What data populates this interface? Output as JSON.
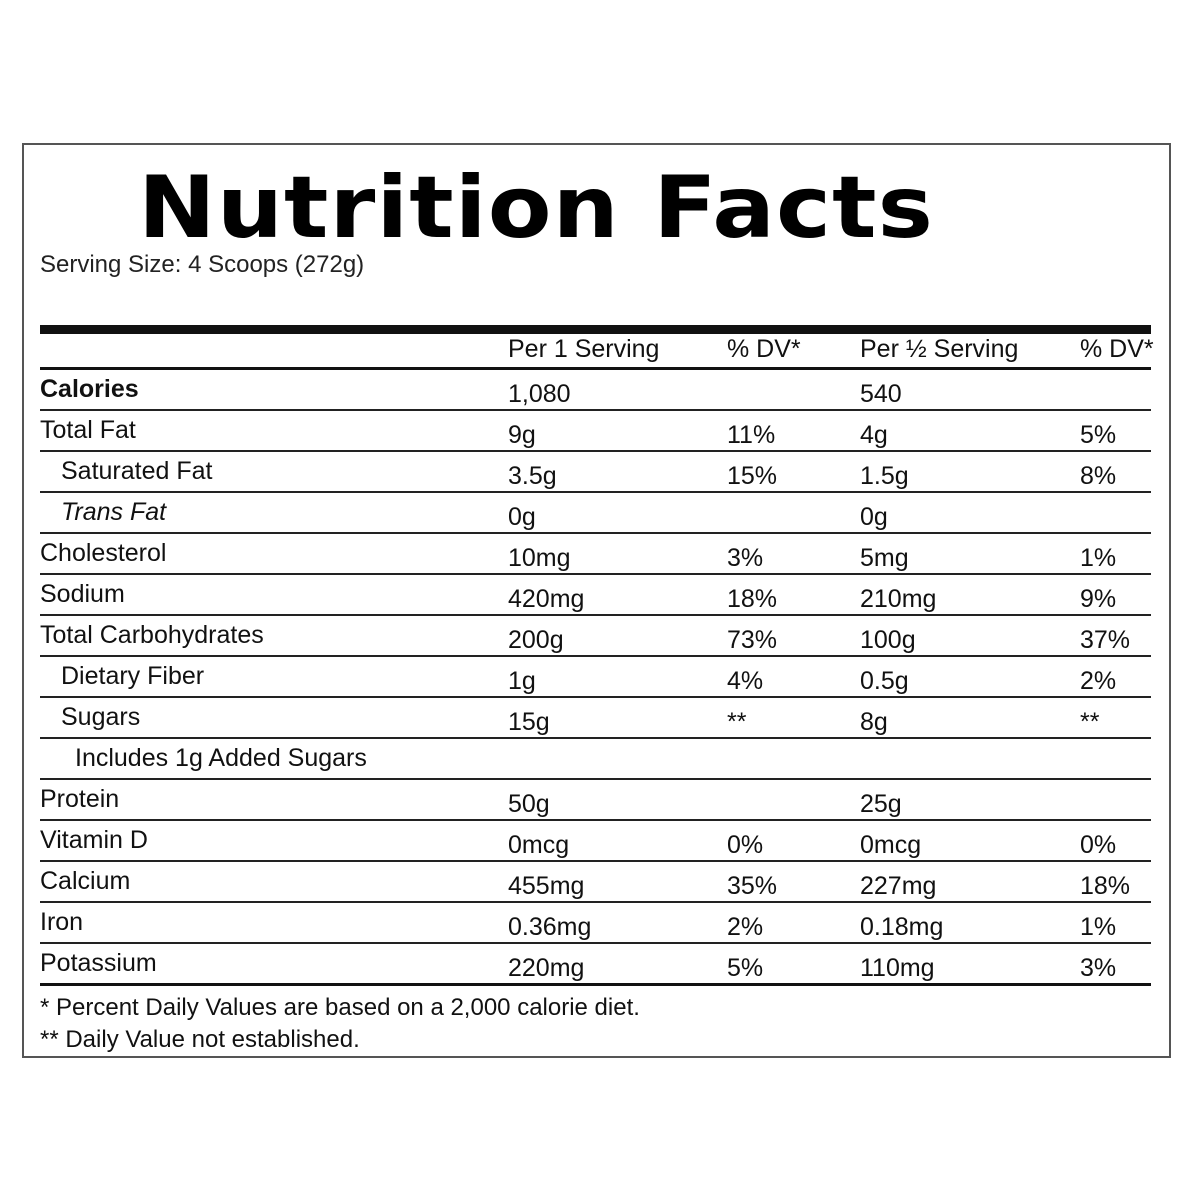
{
  "title": "Nutrition Facts",
  "serving_size": "Serving Size: 4 Scoops (272g)",
  "columns": {
    "per1": "Per 1 Serving",
    "dv1": "% DV*",
    "perhalf": "Per ½ Serving",
    "dv2": "% DV*"
  },
  "rows": [
    {
      "name": "Calories",
      "per1": "1,080",
      "dv1": "",
      "perhalf": "540",
      "dv2": ""
    },
    {
      "name": "Total Fat",
      "per1": "9g",
      "dv1": "11%",
      "perhalf": "4g",
      "dv2": "5%"
    },
    {
      "name": "Saturated Fat",
      "per1": "3.5g",
      "dv1": "15%",
      "perhalf": "1.5g",
      "dv2": "8%"
    },
    {
      "name": "Trans Fat",
      "per1": "0g",
      "dv1": "",
      "perhalf": "0g",
      "dv2": ""
    },
    {
      "name": "Cholesterol",
      "per1": "10mg",
      "dv1": "3%",
      "perhalf": "5mg",
      "dv2": "1%"
    },
    {
      "name": "Sodium",
      "per1": "420mg",
      "dv1": "18%",
      "perhalf": "210mg",
      "dv2": "9%"
    },
    {
      "name": "Total Carbohydrates",
      "per1": "200g",
      "dv1": "73%",
      "perhalf": "100g",
      "dv2": "37%"
    },
    {
      "name": "Dietary Fiber",
      "per1": "1g",
      "dv1": "4%",
      "perhalf": "0.5g",
      "dv2": "2%"
    },
    {
      "name": "Sugars",
      "per1": "15g",
      "dv1": "**",
      "perhalf": "8g",
      "dv2": "**"
    },
    {
      "name": "Includes 1g Added Sugars",
      "per1": "",
      "dv1": "",
      "perhalf": "",
      "dv2": ""
    },
    {
      "name": "Protein",
      "per1": "50g",
      "dv1": "",
      "perhalf": "25g",
      "dv2": ""
    },
    {
      "name": "Vitamin D",
      "per1": "0mcg",
      "dv1": "0%",
      "perhalf": "0mcg",
      "dv2": "0%"
    },
    {
      "name": "Calcium",
      "per1": "455mg",
      "dv1": "35%",
      "perhalf": "227mg",
      "dv2": "18%"
    },
    {
      "name": "Iron",
      "per1": "0.36mg",
      "dv1": "2%",
      "perhalf": "0.18mg",
      "dv2": "1%"
    },
    {
      "name": "Potassium",
      "per1": "220mg",
      "dv1": "5%",
      "perhalf": "110mg",
      "dv2": "3%"
    }
  ],
  "footnotes": {
    "dv_basis": "* Percent Daily Values are based on a 2,000 calorie diet.",
    "not_established": "** Daily Value not established."
  }
}
